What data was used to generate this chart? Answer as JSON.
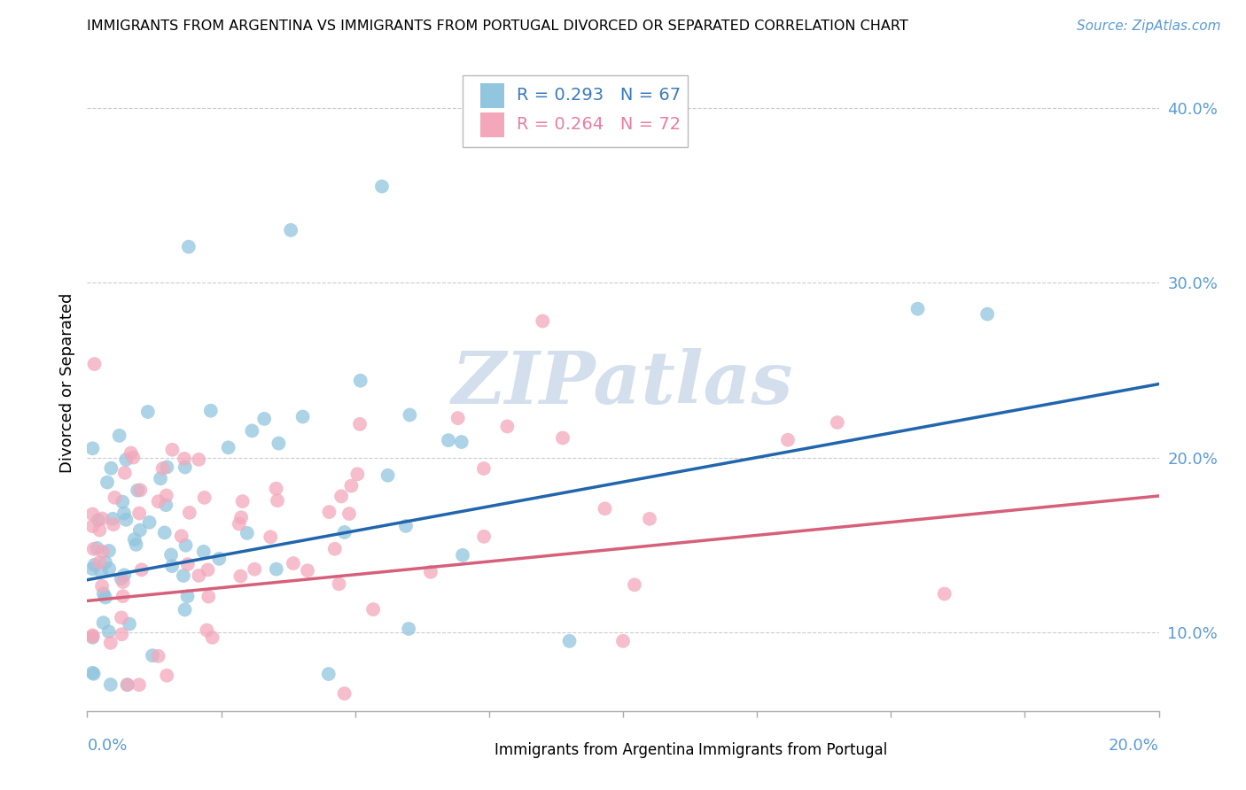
{
  "title": "IMMIGRANTS FROM ARGENTINA VS IMMIGRANTS FROM PORTUGAL DIVORCED OR SEPARATED CORRELATION CHART",
  "source": "Source: ZipAtlas.com",
  "ylabel": "Divorced or Separated",
  "argentina_R": 0.293,
  "argentina_N": 67,
  "portugal_R": 0.264,
  "portugal_N": 72,
  "argentina_color": "#92c5de",
  "portugal_color": "#f4a7bb",
  "argentina_line_color": "#2166ac",
  "portugal_line_color": "#d6607a",
  "watermark_text": "ZIPatlas",
  "watermark_color": "#c8d8e8",
  "xlim": [
    0.0,
    0.2
  ],
  "ylim": [
    0.055,
    0.43
  ],
  "arg_line_x0": 0.0,
  "arg_line_y0": 0.13,
  "arg_line_x1": 0.2,
  "arg_line_y1": 0.242,
  "port_line_x0": 0.0,
  "port_line_y0": 0.118,
  "port_line_x1": 0.2,
  "port_line_y1": 0.178,
  "yticks": [
    0.1,
    0.2,
    0.3,
    0.4
  ],
  "ytick_labels": [
    "10.0%",
    "20.0%",
    "30.0%",
    "40.0%"
  ],
  "xtick_left_label": "0.0%",
  "xtick_right_label": "20.0%",
  "legend_label1": "R = 0.293   N = 67",
  "legend_label2": "R = 0.264   N = 72",
  "bottom_legend1": "Immigrants from Argentina",
  "bottom_legend2": "Immigrants from Portugal"
}
